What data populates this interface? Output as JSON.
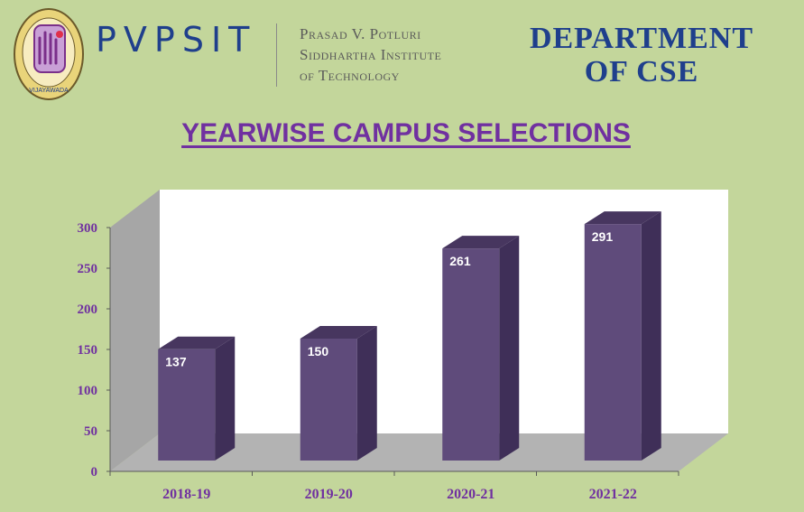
{
  "header": {
    "logo_caption": "VIJAYAWADA",
    "brand_acronym": "PVPSIT",
    "brand_name_lines": [
      "Prasad V. Potluri",
      "Siddhartha Institute",
      "of Technology"
    ],
    "department_lines": [
      "DEPARTMENT",
      "OF CSE"
    ]
  },
  "colors": {
    "background": "#c3d69b",
    "bar_front": "#5f4b7b",
    "bar_side": "#3f2f58",
    "bar_top": "#47365f",
    "plot_back": "#ffffff",
    "plot_wall": "#a6a6a6",
    "plot_floor": "#b3b3b3",
    "axis_text": "#7030a0",
    "heading": "#7030a0",
    "title_blue": "#1f3f8c"
  },
  "chart_data": {
    "type": "bar",
    "title": "YEARWISE CAMPUS SELECTIONS",
    "categories": [
      "2018-19",
      "2019-20",
      "2020-21",
      "2021-22"
    ],
    "values": [
      137,
      150,
      261,
      291
    ],
    "data_labels": [
      "137",
      "150",
      "261",
      "291"
    ],
    "ylim": [
      0,
      300
    ],
    "yticks": [
      0,
      50,
      100,
      150,
      200,
      250,
      300
    ],
    "xlabel": "",
    "ylabel": "",
    "grid": false,
    "legend": "none",
    "style": "3d-column"
  }
}
